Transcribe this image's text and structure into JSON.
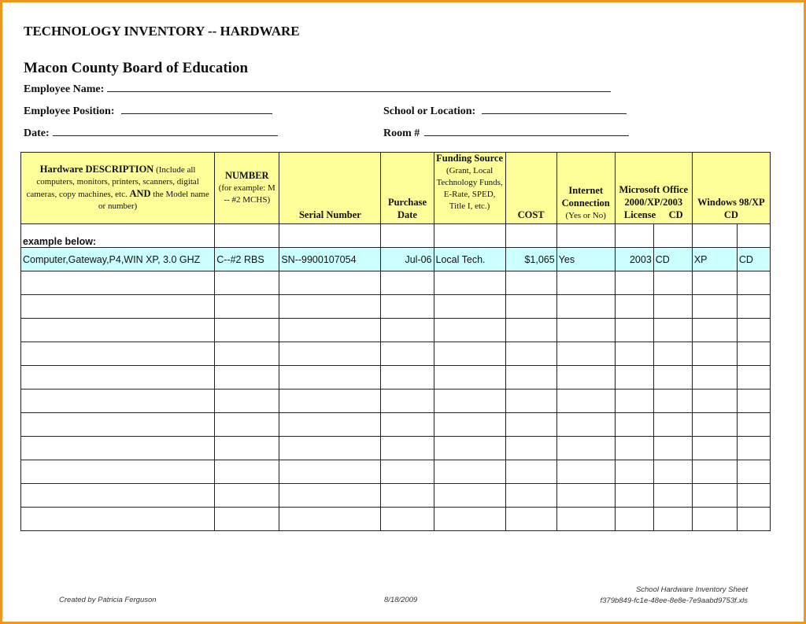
{
  "title": "TECHNOLOGY INVENTORY -- HARDWARE",
  "organization": "Macon County Board of Education",
  "fields": {
    "employee_name": "Employee Name:",
    "employee_position": "Employee Position:",
    "school_location": "School or Location:",
    "date": "Date:",
    "room": "Room #"
  },
  "table": {
    "headers": {
      "description_bold": "Hardware DESCRIPTION",
      "description_rest": " (Include all computers, monitors, printers, scanners, digital cameras, copy machines, etc. ",
      "description_and": "AND",
      "description_end": " the Model name or number)",
      "number_bold": "NUMBER",
      "number_rest": "(for example: M -- #2 MCHS)",
      "serial": "Serial Number",
      "purchase_date": "Purchase Date",
      "funding_bold": "Funding Source",
      "funding_rest": " (Grant, Local Technology Funds, E-Rate, SPED, Title I, etc.)",
      "cost": "COST",
      "internet_bold": "Internet Connection",
      "internet_rest": "(Yes or No)",
      "office_bold": "Microsoft Office 2000/XP/2003",
      "office_license": "License",
      "office_cd": "CD",
      "windows": "Windows 98/XP",
      "windows_cd": "CD"
    },
    "example_label": "example below:",
    "example_row": [
      "Computer,Gateway,P4,WIN XP, 3.0 GHZ",
      "C--#2 RBS",
      "SN--9900107054",
      "Jul-06",
      "Local Tech.",
      "$1,065",
      "Yes",
      "2003",
      "CD",
      "XP",
      "CD"
    ],
    "empty_rows": 11
  },
  "footer": {
    "created_by": "Created by Patricia Ferguson",
    "date": "8/18/2009",
    "sheet_name": "School Hardware Inventory Sheet",
    "file_name": "f379b849-fc1e-48ee-8e8e-7e9aabd9753f.xls"
  },
  "colors": {
    "header_bg": "#ffff99",
    "example_bg": "#ccffff",
    "frame": "#f0961e"
  }
}
